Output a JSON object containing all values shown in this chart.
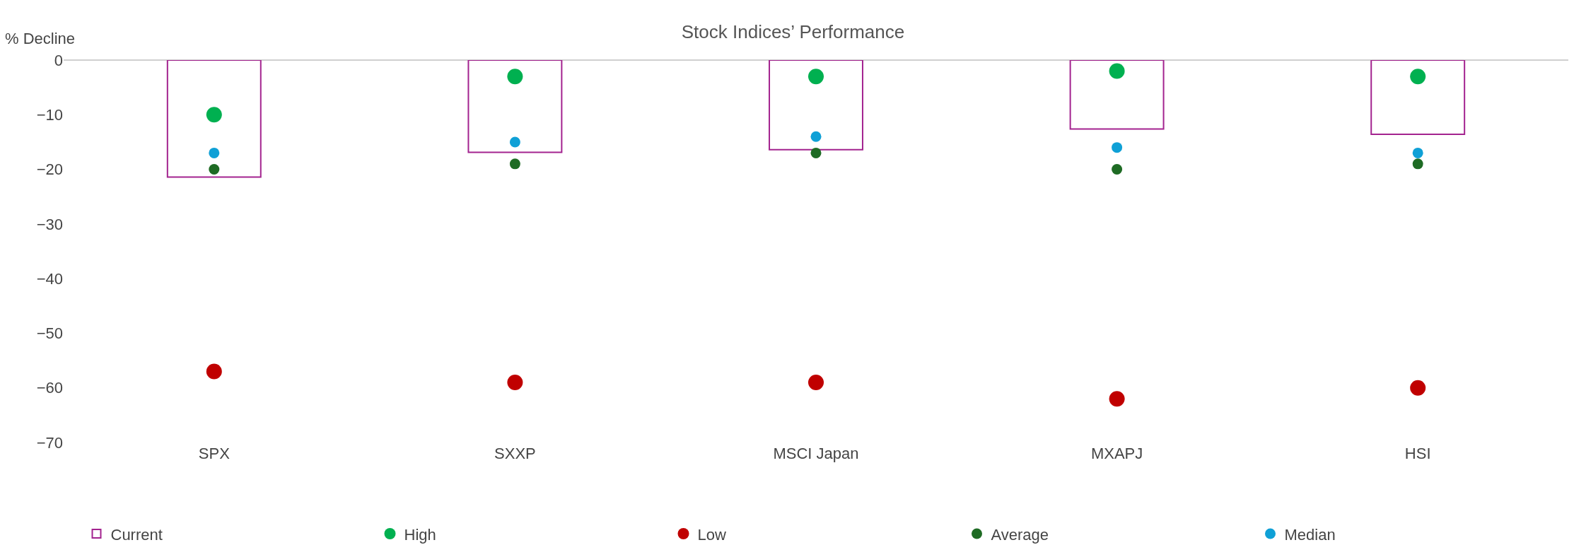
{
  "chart_data": {
    "type": "bar",
    "title": "Stock Indices’ Performance",
    "ylabel": "% Decline",
    "categories": [
      "SPX",
      "SXXP",
      "MSCI Japan",
      "MXAPJ",
      "HSI"
    ],
    "series": [
      {
        "name": "Current",
        "color": "#a3238f",
        "values": [
          -21.4,
          -16.9,
          -16.4,
          -12.6,
          -13.6
        ]
      },
      {
        "name": "High",
        "type": "scatter",
        "color": "#00b050",
        "values": [
          -10,
          -3,
          -3,
          -2,
          -3
        ]
      },
      {
        "name": "Low",
        "type": "scatter",
        "color": "#c00000",
        "values": [
          -57,
          -59,
          -59,
          -62,
          -60
        ]
      },
      {
        "name": "Average",
        "type": "scatter",
        "color": "#1e6b24",
        "values": [
          -20,
          -19,
          -17,
          -20,
          -19
        ]
      },
      {
        "name": "Median",
        "type": "scatter",
        "color": "#0fa0d6",
        "values": [
          -17,
          -15,
          -14,
          -16,
          -17
        ]
      }
    ],
    "ylim": [
      -70,
      0
    ],
    "yticks": [
      0,
      -10,
      -20,
      -30,
      -40,
      -50,
      -60,
      -70
    ],
    "grid": false,
    "legend": "bottom",
    "marker": "circle"
  }
}
